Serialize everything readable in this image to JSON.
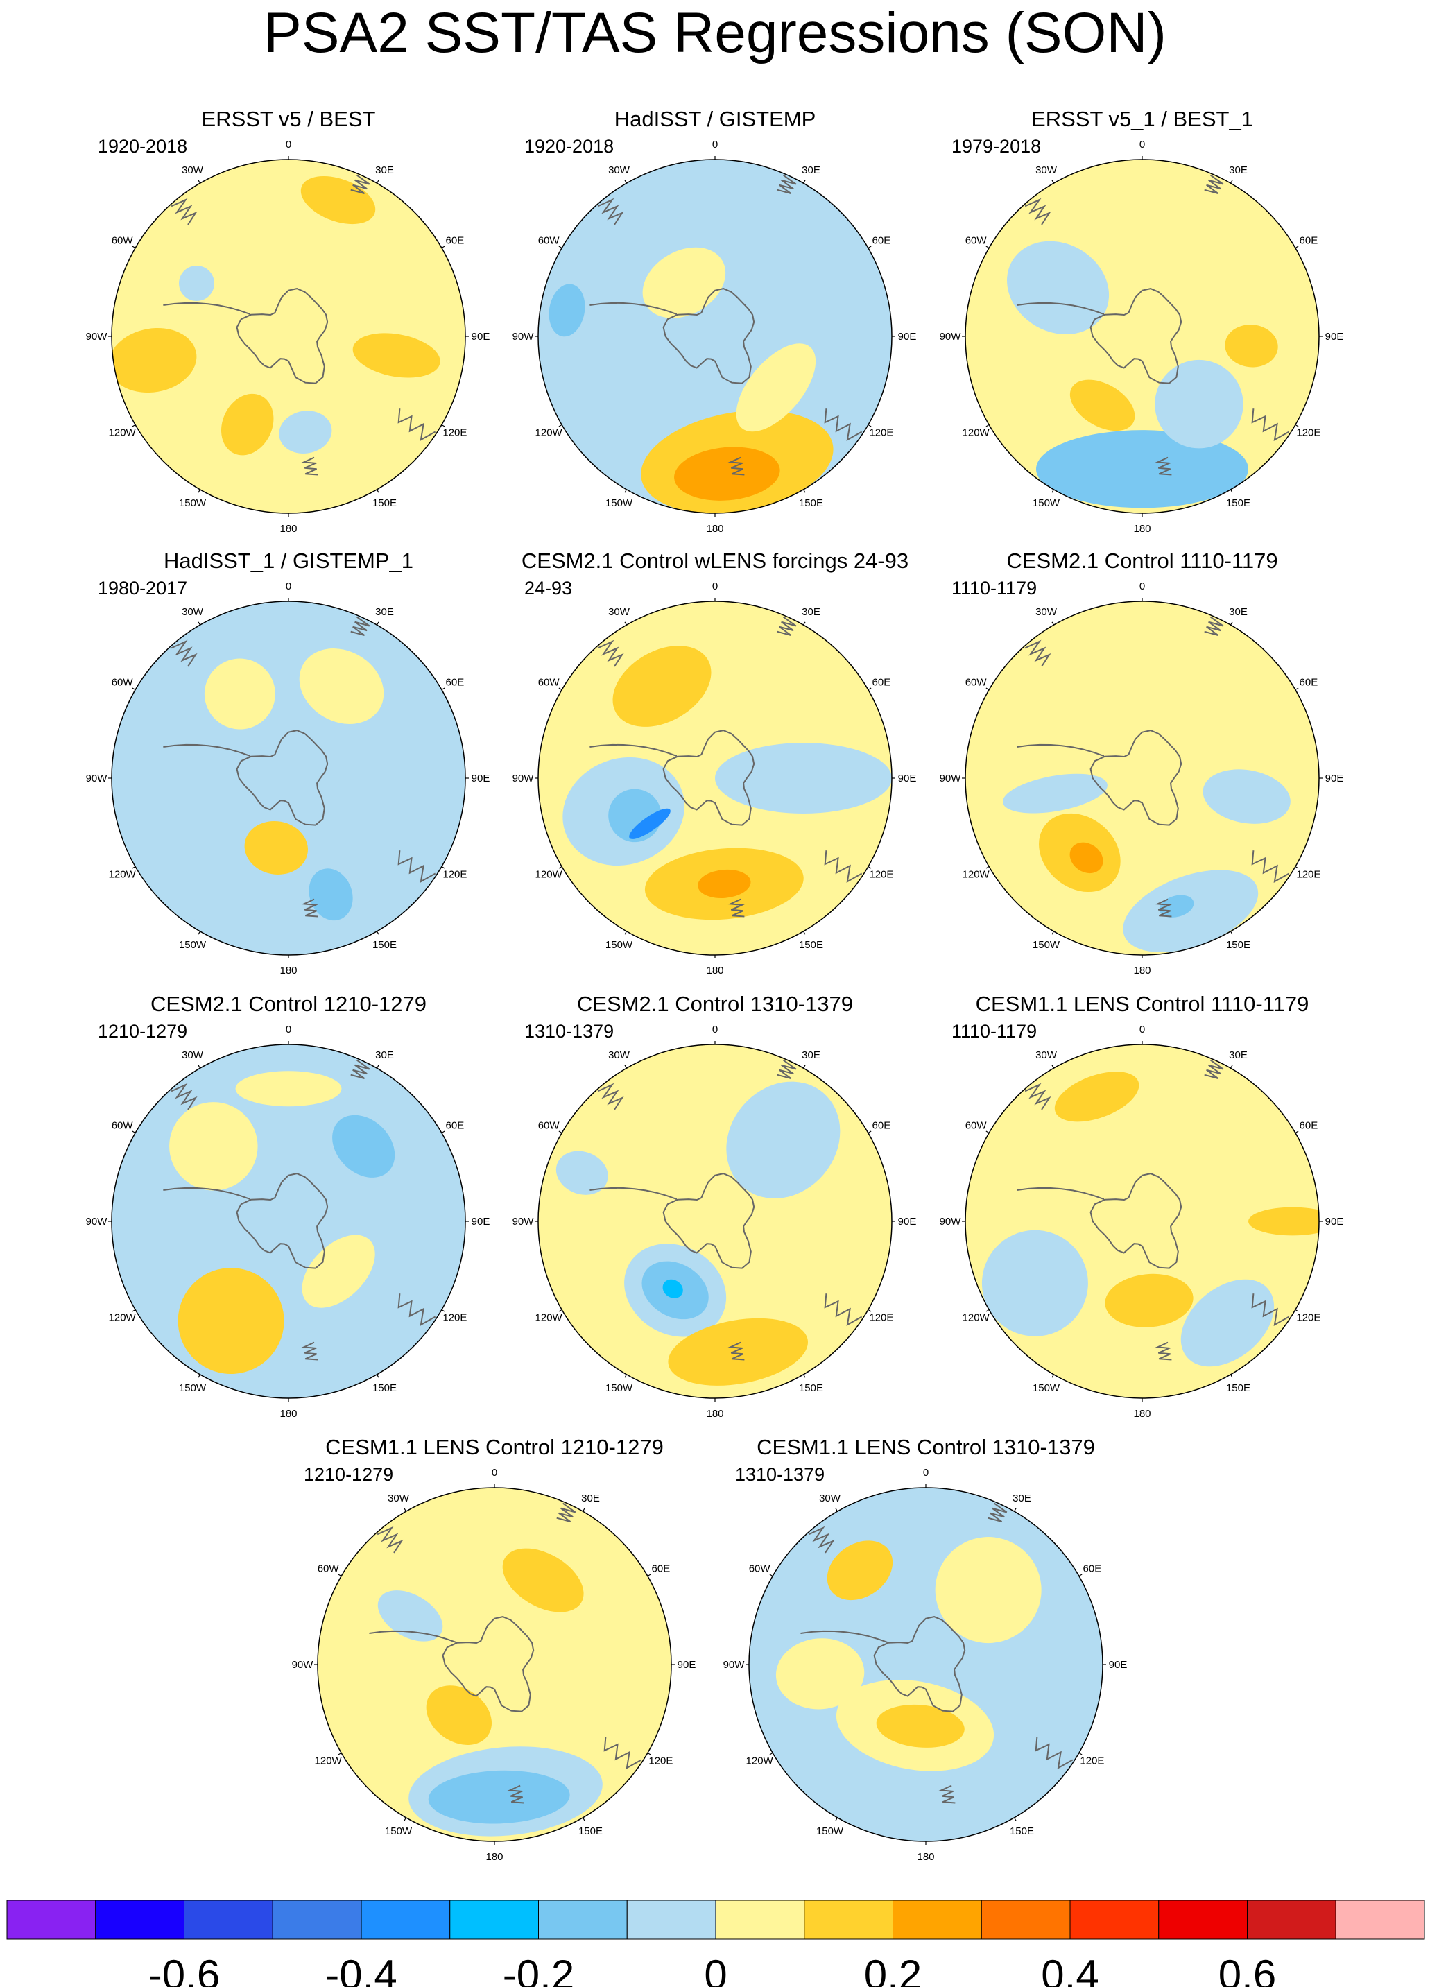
{
  "title": "PSA2 SST/TAS Regressions (SON)",
  "colors": {
    "neutral_neg": "#b3dcf2",
    "neutral_pos": "#fff69a",
    "pos_02": "#ffd22e",
    "pos_03": "#ffa400",
    "pos_04": "#ff7400",
    "neg_02": "#7ac8f2",
    "neg_03": "#00bfff",
    "neg_04": "#1e8cff",
    "land_outline": "#666666"
  },
  "colorbar": {
    "colors": [
      "#8922f2",
      "#1800ff",
      "#2a4ae8",
      "#3b7ce8",
      "#1e90ff",
      "#00bfff",
      "#78c7f1",
      "#b3dcf2",
      "#fff69a",
      "#ffd22e",
      "#ffa400",
      "#ff7400",
      "#ff3300",
      "#ee0000",
      "#d11b1b",
      "#ffb3b3"
    ],
    "labels": [
      "-0.6",
      "-0.4",
      "-0.2",
      "0",
      "0.2",
      "0.4",
      "0.6"
    ]
  },
  "longitude_labels": {
    "0": "0",
    "30E": "30E",
    "60E": "60E",
    "90E": "90E",
    "120E": "120E",
    "150E": "150E",
    "180": "180",
    "150W": "150W",
    "120W": "120W",
    "90W": "90W",
    "60W": "60W",
    "30W": "30W"
  },
  "panels": [
    {
      "title": "ERSST v5 / BEST",
      "period": "1920-2018",
      "base": "pos",
      "blobs": [
        {
          "lon": 20,
          "r": 0.82,
          "w": 0.22,
          "h": 0.12,
          "lvl": "pos_02"
        },
        {
          "lon": -100,
          "r": 0.78,
          "w": 0.18,
          "h": 0.25,
          "lvl": "pos_02"
        },
        {
          "lon": 100,
          "r": 0.62,
          "w": 0.12,
          "h": 0.25,
          "lvl": "pos_02"
        },
        {
          "lon": -155,
          "r": 0.55,
          "w": 0.14,
          "h": 0.18,
          "lvl": "pos_02"
        },
        {
          "lon": 170,
          "r": 0.55,
          "w": 0.15,
          "h": 0.12,
          "lvl": "neg"
        },
        {
          "lon": -60,
          "r": 0.6,
          "w": 0.1,
          "h": 0.1,
          "lvl": "neg"
        }
      ]
    },
    {
      "title": "HadISST / GISTEMP",
      "period": "1920-2018",
      "base": "neg",
      "blobs": [
        {
          "lon": 170,
          "r": 0.72,
          "w": 0.55,
          "h": 0.28,
          "lvl": "pos_02"
        },
        {
          "lon": 175,
          "r": 0.78,
          "w": 0.3,
          "h": 0.15,
          "lvl": "pos_03"
        },
        {
          "lon": -30,
          "r": 0.35,
          "w": 0.25,
          "h": 0.18,
          "lvl": "pos"
        },
        {
          "lon": 130,
          "r": 0.45,
          "w": 0.3,
          "h": 0.15,
          "lvl": "pos"
        },
        {
          "lon": -80,
          "r": 0.85,
          "w": 0.15,
          "h": 0.1,
          "lvl": "neg_02"
        }
      ]
    },
    {
      "title": "ERSST v5_1 / BEST_1",
      "period": "1979-2018",
      "base": "pos",
      "blobs": [
        {
          "lon": 180,
          "r": 0.75,
          "w": 0.6,
          "h": 0.22,
          "lvl": "neg_02"
        },
        {
          "lon": -150,
          "r": 0.45,
          "w": 0.2,
          "h": 0.12,
          "lvl": "pos_02"
        },
        {
          "lon": 95,
          "r": 0.62,
          "w": 0.12,
          "h": 0.15,
          "lvl": "pos_02"
        },
        {
          "lon": -60,
          "r": 0.55,
          "w": 0.25,
          "h": 0.3,
          "lvl": "neg"
        },
        {
          "lon": 140,
          "r": 0.5,
          "w": 0.25,
          "h": 0.25,
          "lvl": "neg"
        }
      ]
    },
    {
      "title": "HadISST_1 / GISTEMP_1",
      "period": "1980-2017",
      "base": "neg",
      "blobs": [
        {
          "lon": 30,
          "r": 0.6,
          "w": 0.25,
          "h": 0.2,
          "lvl": "pos"
        },
        {
          "lon": -30,
          "r": 0.55,
          "w": 0.2,
          "h": 0.2,
          "lvl": "pos"
        },
        {
          "lon": -170,
          "r": 0.4,
          "w": 0.18,
          "h": 0.15,
          "lvl": "pos_02"
        },
        {
          "lon": 160,
          "r": 0.7,
          "w": 0.12,
          "h": 0.15,
          "lvl": "neg_02"
        }
      ]
    },
    {
      "title": "CESM2.1 Control wLENS forcings 24-93",
      "period": "24-93",
      "base": "pos",
      "blobs": [
        {
          "lon": -30,
          "r": 0.6,
          "w": 0.3,
          "h": 0.2,
          "lvl": "pos_02"
        },
        {
          "lon": -110,
          "r": 0.55,
          "w": 0.3,
          "h": 0.35,
          "lvl": "neg"
        },
        {
          "lon": -115,
          "r": 0.5,
          "w": 0.15,
          "h": 0.15,
          "lvl": "neg_02"
        },
        {
          "lon": -125,
          "r": 0.45,
          "w": 0.04,
          "h": 0.14,
          "lvl": "neg_04"
        },
        {
          "lon": 175,
          "r": 0.6,
          "w": 0.45,
          "h": 0.2,
          "lvl": "pos_02"
        },
        {
          "lon": 175,
          "r": 0.6,
          "w": 0.15,
          "h": 0.08,
          "lvl": "pos_03"
        },
        {
          "lon": 90,
          "r": 0.5,
          "w": 0.2,
          "h": 0.5,
          "lvl": "neg"
        }
      ]
    },
    {
      "title": "CESM2.1 Control 1110-1179",
      "period": "1110-1179",
      "base": "pos",
      "blobs": [
        {
          "lon": -140,
          "r": 0.55,
          "w": 0.25,
          "h": 0.2,
          "lvl": "pos_02"
        },
        {
          "lon": -145,
          "r": 0.55,
          "w": 0.1,
          "h": 0.08,
          "lvl": "pos_03"
        },
        {
          "lon": 160,
          "r": 0.8,
          "w": 0.4,
          "h": 0.2,
          "lvl": "neg"
        },
        {
          "lon": 165,
          "r": 0.75,
          "w": 0.1,
          "h": 0.06,
          "lvl": "neg_02"
        },
        {
          "lon": -100,
          "r": 0.5,
          "w": 0.1,
          "h": 0.3,
          "lvl": "neg"
        },
        {
          "lon": 100,
          "r": 0.6,
          "w": 0.15,
          "h": 0.25,
          "lvl": "neg"
        }
      ]
    },
    {
      "title": "CESM2.1 Control 1210-1279",
      "period": "1210-1279",
      "base": "neg",
      "blobs": [
        {
          "lon": -150,
          "r": 0.65,
          "w": 0.3,
          "h": 0.3,
          "lvl": "pos_02"
        },
        {
          "lon": -45,
          "r": 0.6,
          "w": 0.25,
          "h": 0.25,
          "lvl": "pos"
        },
        {
          "lon": 135,
          "r": 0.4,
          "w": 0.25,
          "h": 0.15,
          "lvl": "pos"
        },
        {
          "lon": 45,
          "r": 0.6,
          "w": 0.2,
          "h": 0.15,
          "lvl": "neg_02"
        },
        {
          "lon": 0,
          "r": 0.75,
          "w": 0.3,
          "h": 0.1,
          "lvl": "pos"
        }
      ]
    },
    {
      "title": "CESM2.1 Control 1310-1379",
      "period": "1310-1379",
      "base": "pos",
      "blobs": [
        {
          "lon": -150,
          "r": 0.45,
          "w": 0.3,
          "h": 0.25,
          "lvl": "neg"
        },
        {
          "lon": -150,
          "r": 0.45,
          "w": 0.2,
          "h": 0.15,
          "lvl": "neg_02"
        },
        {
          "lon": -148,
          "r": 0.45,
          "w": 0.06,
          "h": 0.05,
          "lvl": "neg_03"
        },
        {
          "lon": 170,
          "r": 0.75,
          "w": 0.4,
          "h": 0.18,
          "lvl": "pos_02"
        },
        {
          "lon": 40,
          "r": 0.6,
          "w": 0.3,
          "h": 0.35,
          "lvl": "neg"
        },
        {
          "lon": -70,
          "r": 0.8,
          "w": 0.12,
          "h": 0.15,
          "lvl": "neg"
        }
      ]
    },
    {
      "title": "CESM1.1 LENS Control 1110-1179",
      "period": "1110-1179",
      "base": "pos",
      "blobs": [
        {
          "lon": -20,
          "r": 0.75,
          "w": 0.25,
          "h": 0.12,
          "lvl": "pos_02"
        },
        {
          "lon": 175,
          "r": 0.45,
          "w": 0.25,
          "h": 0.15,
          "lvl": "pos_02"
        },
        {
          "lon": 90,
          "r": 0.85,
          "w": 0.08,
          "h": 0.25,
          "lvl": "pos_02"
        },
        {
          "lon": -120,
          "r": 0.7,
          "w": 0.3,
          "h": 0.3,
          "lvl": "neg"
        },
        {
          "lon": 140,
          "r": 0.75,
          "w": 0.3,
          "h": 0.2,
          "lvl": "neg"
        }
      ]
    },
    {
      "title": "CESM1.1 LENS Control 1210-1279",
      "period": "1210-1279",
      "base": "pos",
      "blobs": [
        {
          "lon": 175,
          "r": 0.72,
          "w": 0.55,
          "h": 0.25,
          "lvl": "neg"
        },
        {
          "lon": 178,
          "r": 0.75,
          "w": 0.4,
          "h": 0.15,
          "lvl": "neg_02"
        },
        {
          "lon": -145,
          "r": 0.35,
          "w": 0.2,
          "h": 0.15,
          "lvl": "pos_02"
        },
        {
          "lon": 30,
          "r": 0.55,
          "w": 0.25,
          "h": 0.15,
          "lvl": "pos_02"
        },
        {
          "lon": -60,
          "r": 0.55,
          "w": 0.12,
          "h": 0.2,
          "lvl": "neg"
        }
      ]
    },
    {
      "title": "CESM1.1 LENS Control 1310-1379",
      "period": "1310-1379",
      "base": "neg",
      "blobs": [
        {
          "lon": -170,
          "r": 0.35,
          "w": 0.45,
          "h": 0.25,
          "lvl": "pos"
        },
        {
          "lon": -175,
          "r": 0.35,
          "w": 0.25,
          "h": 0.12,
          "lvl": "pos_02"
        },
        {
          "lon": -35,
          "r": 0.65,
          "w": 0.2,
          "h": 0.15,
          "lvl": "pos_02"
        },
        {
          "lon": 40,
          "r": 0.55,
          "w": 0.3,
          "h": 0.3,
          "lvl": "pos"
        },
        {
          "lon": -95,
          "r": 0.6,
          "w": 0.2,
          "h": 0.25,
          "lvl": "pos"
        }
      ]
    }
  ]
}
